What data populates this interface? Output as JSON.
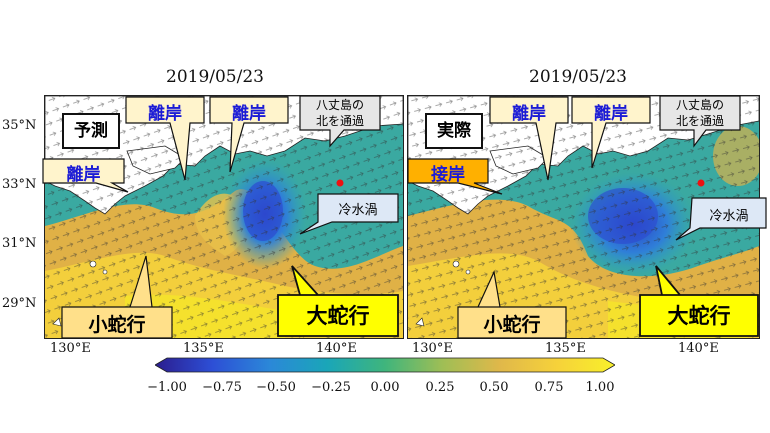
{
  "panels": [
    {
      "title": "2019/05/23",
      "label": "予測",
      "callouts": {
        "detach_1": "離岸",
        "detach_2": "離岸",
        "detach_3": "離岸",
        "hachijo": "八丈島の\n北を通過",
        "cold_eddy": "冷水渦",
        "small_meander": "小蛇行",
        "large_meander": "大蛇行"
      }
    },
    {
      "title": "2019/05/23",
      "label": "実際",
      "callouts": {
        "detach_1": "離岸",
        "detach_2": "離岸",
        "approach": "接岸",
        "hachijo": "八丈島の\n北を通過",
        "cold_eddy": "冷水渦",
        "small_meander": "小蛇行",
        "large_meander": "大蛇行"
      }
    }
  ],
  "axes": {
    "lat_ticks": [
      "35°N",
      "33°N",
      "31°N",
      "29°N"
    ],
    "lon_ticks": [
      "130°E",
      "135°E",
      "140°E"
    ]
  },
  "colorbar": {
    "ticks": [
      "−1.00",
      "−0.75",
      "−0.50",
      "−0.25",
      "0.00",
      "0.25",
      "0.50",
      "0.75",
      "1.00"
    ],
    "range": [
      -1.0,
      1.0
    ],
    "colormap": [
      "#2b1d8e",
      "#2d4fd6",
      "#2b88d8",
      "#1aa6b8",
      "#3fb57c",
      "#9fbe55",
      "#e0b84a",
      "#f6d23a",
      "#f8f02a"
    ]
  },
  "colors": {
    "land": "#ffffff",
    "warm": "#e2b44a",
    "cold": "#2a5fd0",
    "callout_fill": "#fff4cc",
    "callout_yellow": "#ffff00",
    "callout_orange": "#ffb000",
    "callout_grey": "#e6e6e6",
    "callout_blue": "#dde8f6",
    "marker": "#ee1111"
  }
}
